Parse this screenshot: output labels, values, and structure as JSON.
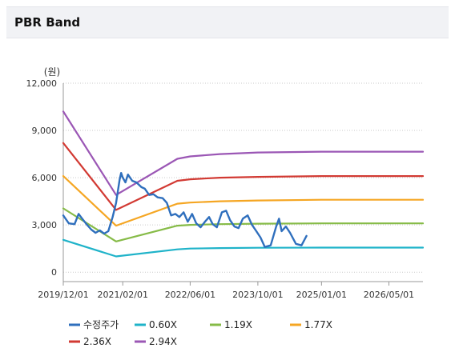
{
  "header": {
    "title": "PBR Band"
  },
  "chart_data": {
    "type": "line",
    "yunit": "(원)",
    "ylim": [
      -600,
      12000
    ],
    "xlim": [
      "2019-12-01",
      "2027-01-01"
    ],
    "yticks": [
      0,
      3000,
      6000,
      9000,
      12000
    ],
    "ytick_labels": [
      "0",
      "3,000",
      "6,000",
      "9,000",
      "12,000"
    ],
    "xticks": [
      "2019-12-01",
      "2021-02-01",
      "2022-06-01",
      "2023-10-01",
      "2025-01-01",
      "2026-05-01"
    ],
    "xtick_labels": [
      "2019/12/01",
      "2021/02/01",
      "2022/06/01",
      "2023/10/01",
      "2025/01/01",
      "2026/05/01"
    ],
    "grid": "horizontal-dotted",
    "legend_position": "bottom",
    "series": [
      {
        "name": "2.94X",
        "color": "#9b57b5",
        "points": [
          [
            "2019-12-01",
            10200
          ],
          [
            "2020-12-15",
            4900
          ],
          [
            "2022-03-01",
            7200
          ],
          [
            "2022-06-01",
            7350
          ],
          [
            "2023-01-01",
            7500
          ],
          [
            "2023-10-01",
            7600
          ],
          [
            "2025-01-01",
            7650
          ],
          [
            "2027-01-01",
            7650
          ]
        ]
      },
      {
        "name": "2.36X",
        "color": "#d23a33",
        "points": [
          [
            "2019-12-01",
            8200
          ],
          [
            "2020-12-15",
            3950
          ],
          [
            "2022-03-01",
            5800
          ],
          [
            "2022-06-01",
            5900
          ],
          [
            "2023-01-01",
            6000
          ],
          [
            "2023-10-01",
            6050
          ],
          [
            "2025-01-01",
            6100
          ],
          [
            "2027-01-01",
            6100
          ]
        ]
      },
      {
        "name": "1.77X",
        "color": "#f5a623",
        "points": [
          [
            "2019-12-01",
            6100
          ],
          [
            "2020-12-15",
            2950
          ],
          [
            "2022-03-01",
            4350
          ],
          [
            "2022-06-01",
            4420
          ],
          [
            "2023-01-01",
            4500
          ],
          [
            "2023-10-01",
            4550
          ],
          [
            "2025-01-01",
            4600
          ],
          [
            "2027-01-01",
            4600
          ]
        ]
      },
      {
        "name": "1.19X",
        "color": "#86bb47",
        "points": [
          [
            "2019-12-01",
            4050
          ],
          [
            "2020-12-15",
            1950
          ],
          [
            "2022-03-01",
            2950
          ],
          [
            "2022-06-01",
            3000
          ],
          [
            "2023-01-01",
            3050
          ],
          [
            "2023-10-01",
            3080
          ],
          [
            "2025-01-01",
            3100
          ],
          [
            "2027-01-01",
            3100
          ]
        ]
      },
      {
        "name": "0.60X",
        "color": "#1fb3c9",
        "points": [
          [
            "2019-12-01",
            2050
          ],
          [
            "2020-12-15",
            1000
          ],
          [
            "2022-03-01",
            1450
          ],
          [
            "2022-06-01",
            1500
          ],
          [
            "2023-01-01",
            1530
          ],
          [
            "2023-10-01",
            1550
          ],
          [
            "2025-01-01",
            1560
          ],
          [
            "2027-01-01",
            1560
          ]
        ]
      },
      {
        "name": "수정주가",
        "color": "#2f6fbd",
        "points": [
          [
            "2019-12-01",
            3600
          ],
          [
            "2020-01-10",
            3100
          ],
          [
            "2020-02-20",
            3050
          ],
          [
            "2020-03-20",
            3700
          ],
          [
            "2020-04-15",
            3400
          ],
          [
            "2020-05-20",
            3000
          ],
          [
            "2020-06-20",
            2700
          ],
          [
            "2020-07-20",
            2500
          ],
          [
            "2020-08-20",
            2650
          ],
          [
            "2020-09-20",
            2450
          ],
          [
            "2020-10-20",
            2600
          ],
          [
            "2020-11-20",
            3500
          ],
          [
            "2020-12-15",
            4400
          ],
          [
            "2021-01-10",
            5900
          ],
          [
            "2021-01-20",
            6300
          ],
          [
            "2021-02-01",
            6000
          ],
          [
            "2021-02-20",
            5700
          ],
          [
            "2021-03-10",
            6200
          ],
          [
            "2021-04-10",
            5800
          ],
          [
            "2021-05-10",
            5700
          ],
          [
            "2021-06-15",
            5400
          ],
          [
            "2021-07-10",
            5300
          ],
          [
            "2021-08-10",
            4900
          ],
          [
            "2021-09-10",
            4950
          ],
          [
            "2021-10-10",
            4750
          ],
          [
            "2021-11-15",
            4700
          ],
          [
            "2021-12-15",
            4400
          ],
          [
            "2022-01-15",
            3600
          ],
          [
            "2022-02-15",
            3700
          ],
          [
            "2022-03-15",
            3500
          ],
          [
            "2022-04-15",
            3800
          ],
          [
            "2022-05-15",
            3200
          ],
          [
            "2022-06-15",
            3700
          ],
          [
            "2022-07-15",
            3100
          ],
          [
            "2022-08-15",
            2850
          ],
          [
            "2022-09-15",
            3200
          ],
          [
            "2022-10-15",
            3500
          ],
          [
            "2022-11-10",
            3050
          ],
          [
            "2022-12-10",
            2850
          ],
          [
            "2023-01-15",
            3800
          ],
          [
            "2023-02-15",
            3900
          ],
          [
            "2023-03-15",
            3300
          ],
          [
            "2023-04-15",
            2900
          ],
          [
            "2023-05-15",
            2800
          ],
          [
            "2023-06-15",
            3400
          ],
          [
            "2023-07-20",
            3600
          ],
          [
            "2023-08-20",
            3000
          ],
          [
            "2023-09-20",
            2600
          ],
          [
            "2023-10-20",
            2200
          ],
          [
            "2023-11-20",
            1600
          ],
          [
            "2024-01-01",
            1700
          ],
          [
            "2024-02-10",
            2900
          ],
          [
            "2024-03-01",
            3400
          ],
          [
            "2024-03-20",
            2600
          ],
          [
            "2024-04-20",
            2900
          ],
          [
            "2024-05-20",
            2500
          ],
          [
            "2024-07-01",
            1800
          ],
          [
            "2024-08-10",
            1700
          ],
          [
            "2024-09-15",
            2300
          ]
        ]
      }
    ]
  },
  "legend": {
    "rows": [
      [
        {
          "label": "수정주가",
          "color": "#2f6fbd"
        },
        {
          "label": "0.60X",
          "color": "#1fb3c9"
        },
        {
          "label": "1.19X",
          "color": "#86bb47"
        },
        {
          "label": "1.77X",
          "color": "#f5a623"
        }
      ],
      [
        {
          "label": "2.36X",
          "color": "#d23a33"
        },
        {
          "label": "2.94X",
          "color": "#9b57b5"
        }
      ]
    ]
  }
}
